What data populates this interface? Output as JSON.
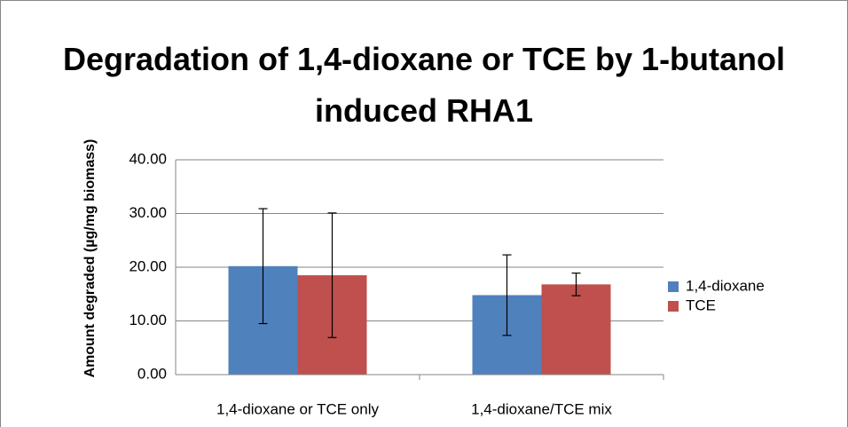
{
  "chart_data": {
    "type": "bar",
    "title": "Degradation of 1,4-dioxane or TCE by 1-butanol induced RHA1",
    "ylabel": "Amount degraded (µg/mg biomass)",
    "categories": [
      "1,4-dioxane or TCE only",
      "1,4-dioxane/TCE mix"
    ],
    "series": [
      {
        "name": "1,4-dioxane",
        "color": "#4f81bd",
        "values": [
          20.2,
          14.8
        ],
        "errors": [
          10.7,
          7.5
        ]
      },
      {
        "name": "TCE",
        "color": "#c0504d",
        "values": [
          18.5,
          16.8
        ],
        "errors": [
          11.6,
          2.1
        ]
      }
    ],
    "ylim": [
      0,
      40
    ],
    "yticks": [
      {
        "value": 0,
        "label": "0.00"
      },
      {
        "value": 10,
        "label": "10.00"
      },
      {
        "value": 20,
        "label": "20.00"
      },
      {
        "value": 30,
        "label": "30.00"
      },
      {
        "value": 40,
        "label": "40.00"
      }
    ],
    "grid": true,
    "legend": "right"
  }
}
